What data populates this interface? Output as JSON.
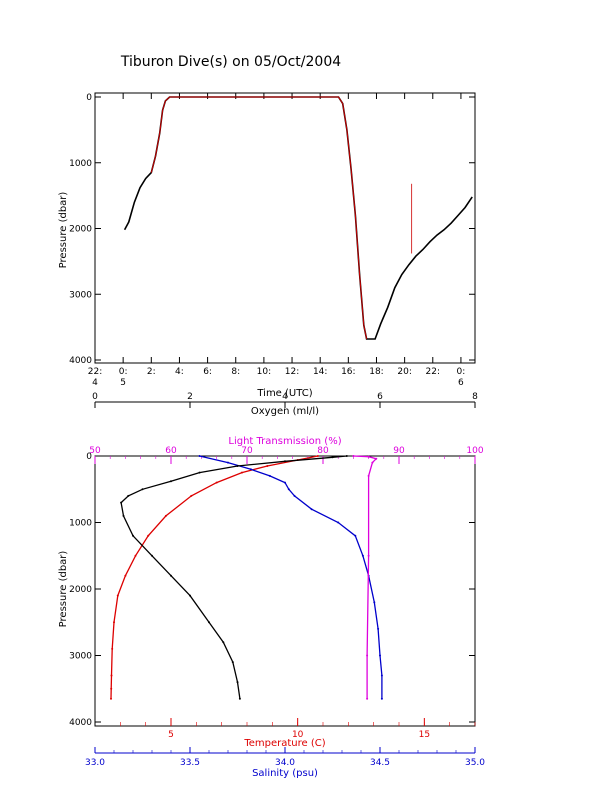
{
  "title": "Tiburon Dive(s) on 05/Oct/2004",
  "colors": {
    "axis": "#000000",
    "depth_trace": "#000000",
    "depth_overlay": "#cc0000",
    "temperature": "#dd0000",
    "salinity": "#0000cc",
    "light_transmission": "#dd00dd",
    "oxygen": "#000000"
  },
  "chart_data": [
    {
      "type": "line",
      "name": "dive-depth-vs-time",
      "xlabel": "Time (UTC)",
      "ylabel": "Pressure (dbar)",
      "xlim": [
        -2,
        25
      ],
      "ylim": [
        4000,
        0
      ],
      "y_inverted": true,
      "xticks": [
        {
          "v": -2,
          "l1": "22:",
          "l2": "4"
        },
        {
          "v": 0,
          "l1": "0:",
          "l2": "5"
        },
        {
          "v": 2,
          "l1": "2:",
          "l2": ""
        },
        {
          "v": 4,
          "l1": "4:",
          "l2": ""
        },
        {
          "v": 6,
          "l1": "6:",
          "l2": ""
        },
        {
          "v": 8,
          "l1": "8:",
          "l2": ""
        },
        {
          "v": 10,
          "l1": "10:",
          "l2": ""
        },
        {
          "v": 12,
          "l1": "12:",
          "l2": ""
        },
        {
          "v": 14,
          "l1": "14:",
          "l2": ""
        },
        {
          "v": 16,
          "l1": "16:",
          "l2": ""
        },
        {
          "v": 18,
          "l1": "18:",
          "l2": ""
        },
        {
          "v": 20,
          "l1": "20:",
          "l2": ""
        },
        {
          "v": 22,
          "l1": "22:",
          "l2": ""
        },
        {
          "v": 24,
          "l1": "0:",
          "l2": "6"
        }
      ],
      "yticks": [
        0,
        1000,
        2000,
        3000,
        4000
      ],
      "series": [
        {
          "color_key": "depth_trace",
          "x": [
            0.1,
            0.4,
            0.8,
            1.2,
            1.6,
            2.0,
            2.3,
            2.6,
            2.8,
            3.0,
            3.3,
            5,
            8,
            11,
            14,
            15.3,
            15.6,
            15.9,
            16.2,
            16.5,
            16.8,
            17.1,
            17.3,
            17.6,
            17.9,
            18.3,
            18.8,
            19.3,
            19.8,
            20.3,
            20.8,
            21.3,
            21.8,
            22.3,
            22.8,
            23.3,
            23.8,
            24.3,
            24.8
          ],
          "y": [
            2020,
            1900,
            1600,
            1380,
            1240,
            1150,
            900,
            550,
            200,
            60,
            0,
            0,
            0,
            0,
            0,
            0,
            100,
            500,
            1100,
            1800,
            2700,
            3470,
            3680,
            3680,
            3680,
            3450,
            3200,
            2900,
            2700,
            2550,
            2420,
            2320,
            2200,
            2100,
            2020,
            1920,
            1800,
            1680,
            1520
          ]
        },
        {
          "color_key": "depth_overlay",
          "x": [
            2.0,
            2.3,
            2.6,
            2.8,
            3.0,
            3.3,
            5,
            8,
            11,
            14,
            15.3,
            15.6,
            15.9,
            16.2,
            16.5,
            16.8,
            17.1,
            17.3
          ],
          "y": [
            1150,
            900,
            550,
            200,
            60,
            0,
            0,
            0,
            0,
            0,
            0,
            100,
            500,
            1100,
            1800,
            2700,
            3470,
            3680
          ]
        }
      ],
      "annotations": [
        {
          "type": "spike",
          "color_key": "depth_overlay",
          "x": 20.5,
          "y_from": 2380,
          "y_to": 1320
        }
      ]
    },
    {
      "type": "line",
      "name": "profiles-vs-pressure",
      "ylabel": "Pressure (dbar)",
      "ylim": [
        4000,
        0
      ],
      "y_inverted": true,
      "yticks": [
        0,
        1000,
        2000,
        3000,
        4000
      ],
      "axes": {
        "oxygen": {
          "label": "Oxygen (ml/l)",
          "position": "top-outer",
          "lim": [
            0,
            8
          ],
          "ticks": [
            0,
            2,
            4,
            6,
            8
          ]
        },
        "light_transmission": {
          "label": "Light Transmission (%)",
          "position": "top-inner",
          "lim": [
            50,
            100
          ],
          "ticks": [
            50,
            60,
            70,
            80,
            90,
            100
          ]
        },
        "temperature": {
          "label": "Temperature (C)",
          "position": "bottom-inner",
          "lim": [
            2,
            17
          ],
          "ticks": [
            5,
            10,
            15
          ]
        },
        "salinity": {
          "label": "Salinity (psu)",
          "position": "bottom-outer",
          "lim": [
            33.0,
            35.0
          ],
          "ticks": [
            33.0,
            33.5,
            34.0,
            34.5,
            35.0
          ],
          "tick_labels": [
            "33.0",
            "33.5",
            "34.0",
            "34.5",
            "35.0"
          ]
        }
      },
      "series": [
        {
          "name": "Temperature",
          "axis": "temperature",
          "color_key": "temperature",
          "x": [
            10.8,
            10.0,
            8.8,
            7.8,
            6.8,
            5.8,
            4.8,
            4.1,
            3.6,
            3.2,
            2.9,
            2.75,
            2.68,
            2.65,
            2.64,
            2.63
          ],
          "y": [
            0,
            60,
            150,
            250,
            400,
            600,
            900,
            1200,
            1500,
            1800,
            2100,
            2500,
            2900,
            3300,
            3500,
            3650
          ]
        },
        {
          "name": "Salinity",
          "axis": "salinity",
          "color_key": "salinity",
          "x": [
            33.55,
            33.7,
            33.82,
            33.92,
            34.0,
            34.02,
            34.05,
            34.14,
            34.28,
            34.37,
            34.41,
            34.44,
            34.47,
            34.49,
            34.5,
            34.51,
            34.51
          ],
          "y": [
            0,
            100,
            200,
            300,
            400,
            500,
            600,
            800,
            1000,
            1200,
            1500,
            1800,
            2200,
            2600,
            3000,
            3300,
            3650
          ]
        },
        {
          "name": "Light Transmission",
          "axis": "light_transmission",
          "color_key": "light_transmission",
          "x": [
            84.0,
            86.0,
            87.0,
            86.5,
            86.0,
            86.0,
            85.8,
            85.8
          ],
          "y": [
            0,
            10,
            40,
            100,
            300,
            1500,
            3000,
            3650
          ]
        },
        {
          "name": "Oxygen",
          "axis": "oxygen",
          "color_key": "oxygen",
          "x": [
            5.3,
            5.0,
            4.0,
            3.0,
            2.2,
            1.6,
            1.0,
            0.7,
            0.55,
            0.6,
            0.8,
            1.2,
            1.6,
            2.0,
            2.4,
            2.7,
            2.9,
            3.0,
            3.05
          ],
          "y": [
            0,
            20,
            80,
            150,
            250,
            380,
            500,
            600,
            700,
            900,
            1200,
            1500,
            1800,
            2100,
            2500,
            2800,
            3100,
            3400,
            3650
          ]
        }
      ]
    }
  ]
}
